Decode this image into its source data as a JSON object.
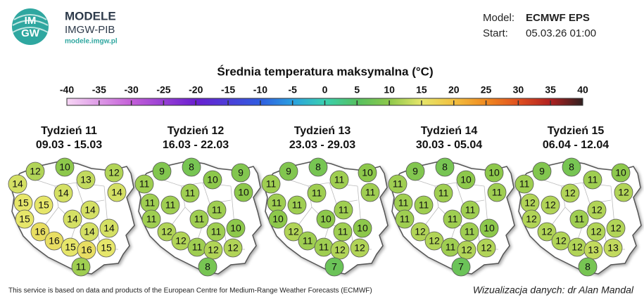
{
  "header": {
    "logo": [
      "IM",
      "GW"
    ],
    "brand": "MODELE",
    "org": "IMGW-PIB",
    "url": "modele.imgw.pl",
    "model_label": "Model:",
    "model": "ECMWF EPS",
    "start_label": "Start:",
    "start": "05.03.26 01:00"
  },
  "colorbar": {
    "title": "Średnia temperatura maksymalna (°C)",
    "ticks": [
      -40,
      -35,
      -30,
      -25,
      -20,
      -15,
      -10,
      -5,
      0,
      5,
      10,
      15,
      20,
      25,
      30,
      35,
      40
    ]
  },
  "weeks": [
    {
      "title": "Tydzień 11",
      "dates": "09.03 - 15.03",
      "values": [
        12,
        10,
        13,
        12,
        14,
        14,
        14,
        15,
        15,
        14,
        15,
        14,
        14,
        14,
        16,
        16,
        15,
        16,
        15,
        11
      ]
    },
    {
      "title": "Tydzień 12",
      "dates": "16.03 - 22.03",
      "values": [
        9,
        8,
        10,
        9,
        11,
        11,
        10,
        11,
        11,
        11,
        11,
        11,
        11,
        10,
        12,
        12,
        11,
        12,
        12,
        8
      ]
    },
    {
      "title": "Tydzień 13",
      "dates": "23.03 - 29.03",
      "values": [
        9,
        8,
        11,
        10,
        11,
        11,
        11,
        11,
        11,
        11,
        10,
        10,
        11,
        10,
        12,
        11,
        11,
        12,
        12,
        7
      ]
    },
    {
      "title": "Tydzień 14",
      "dates": "30.03 - 05.04",
      "values": [
        9,
        8,
        10,
        10,
        11,
        11,
        11,
        11,
        11,
        11,
        11,
        11,
        11,
        10,
        12,
        12,
        11,
        12,
        12,
        7
      ]
    },
    {
      "title": "Tydzień 15",
      "dates": "06.04 - 12.04",
      "values": [
        9,
        8,
        11,
        10,
        11,
        12,
        12,
        12,
        12,
        12,
        12,
        11,
        12,
        12,
        12,
        12,
        12,
        13,
        13,
        8
      ]
    }
  ],
  "footer": {
    "source": "This service is based on data and products of the European Centre for Medium-Range Weather Forecasts (ECMWF)",
    "credit": "Wizualizacja danych: dr Alan Mandal"
  }
}
